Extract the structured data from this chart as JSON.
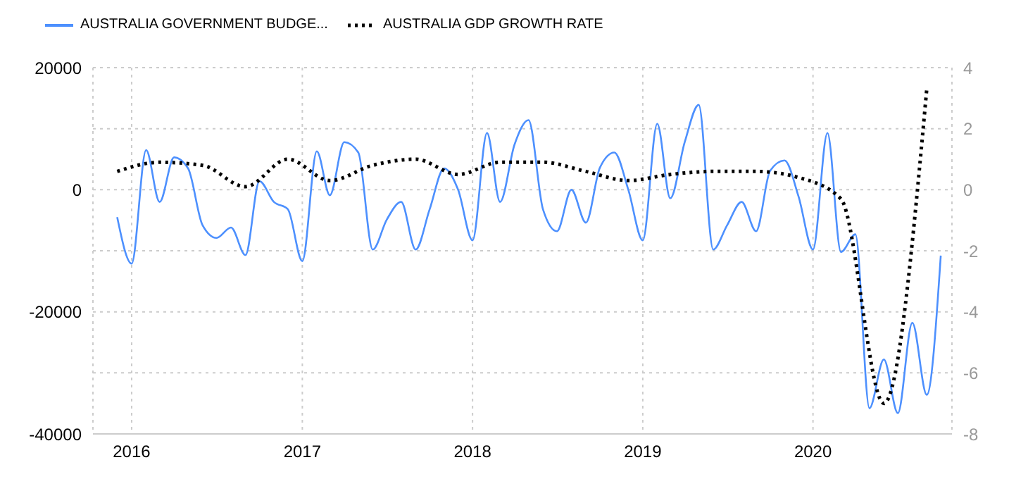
{
  "chart_data": {
    "type": "line",
    "series": [
      {
        "name": "AUSTRALIA GOVERNMENT BUDGE...",
        "color": "#4d90fe",
        "line_style": "solid",
        "axis": "y",
        "x": [
          "2015-12",
          "2016-01",
          "2016-02",
          "2016-03",
          "2016-04",
          "2016-05",
          "2016-06",
          "2016-07",
          "2016-08",
          "2016-09",
          "2016-10",
          "2016-11",
          "2016-12",
          "2017-01",
          "2017-02",
          "2017-03",
          "2017-04",
          "2017-05",
          "2017-06",
          "2017-07",
          "2017-08",
          "2017-09",
          "2017-10",
          "2017-11",
          "2017-12",
          "2018-01",
          "2018-02",
          "2018-03",
          "2018-04",
          "2018-05",
          "2018-06",
          "2018-07",
          "2018-08",
          "2018-09",
          "2018-10",
          "2018-11",
          "2018-12",
          "2019-01",
          "2019-02",
          "2019-03",
          "2019-04",
          "2019-05",
          "2019-06",
          "2019-07",
          "2019-08",
          "2019-09",
          "2019-10",
          "2019-11",
          "2019-12",
          "2020-01",
          "2020-02",
          "2020-03",
          "2020-04",
          "2020-05",
          "2020-06",
          "2020-07",
          "2020-08",
          "2020-09",
          "2020-10"
        ],
        "values": [
          -4500,
          -12100,
          6500,
          -2000,
          5300,
          3500,
          -5800,
          -7900,
          -6200,
          -10700,
          1400,
          -2000,
          -3200,
          -11700,
          6300,
          -900,
          7800,
          6100,
          -9800,
          -4900,
          -2000,
          -9800,
          -3200,
          3500,
          0,
          -8300,
          9300,
          -2000,
          7400,
          11400,
          -3200,
          -6800,
          0,
          -5400,
          3600,
          6100,
          0,
          -8300,
          10800,
          -1400,
          7800,
          13900,
          -9800,
          -5800,
          -2000,
          -6800,
          3100,
          4800,
          -1100,
          -9800,
          9300,
          -10200,
          -7300,
          -35800,
          -27800,
          -36600,
          -21800,
          -33600,
          -10800
        ]
      },
      {
        "name": "AUSTRALIA GDP GROWTH RATE",
        "color": "#000000",
        "line_style": "dotted",
        "axis": "y2",
        "x": [
          "2015-12",
          "2016-03",
          "2016-06",
          "2016-09",
          "2016-12",
          "2017-03",
          "2017-06",
          "2017-09",
          "2017-12",
          "2018-03",
          "2018-06",
          "2018-09",
          "2018-12",
          "2019-03",
          "2019-06",
          "2019-09",
          "2019-12",
          "2020-03",
          "2020-06",
          "2020-09"
        ],
        "values": [
          0.6,
          0.9,
          0.8,
          0.1,
          1.0,
          0.3,
          0.8,
          1.0,
          0.5,
          0.9,
          0.9,
          0.6,
          0.3,
          0.5,
          0.6,
          0.6,
          0.4,
          -0.3,
          -7.0,
          3.3
        ]
      }
    ],
    "xlim": [
      "2015-10-10",
      "2020-10-25"
    ],
    "xticks": [
      {
        "value": "2016",
        "label": "2016"
      },
      {
        "value": "2017",
        "label": "2017"
      },
      {
        "value": "2018",
        "label": "2018"
      },
      {
        "value": "2019",
        "label": "2019"
      },
      {
        "value": "2020",
        "label": "2020"
      }
    ],
    "ylim": [
      -40000,
      20000
    ],
    "yticks": [
      -40000,
      {
        "value": -30000,
        "label": null
      },
      -20000,
      {
        "value": -10000,
        "label": null
      },
      0,
      {
        "value": 10000,
        "label": null
      },
      20000
    ],
    "y2lim": [
      -8,
      4
    ],
    "y2ticks": [
      -8,
      -6,
      -4,
      -2,
      0,
      2,
      4
    ],
    "grid": true,
    "legend": "top left",
    "marker": "none"
  }
}
